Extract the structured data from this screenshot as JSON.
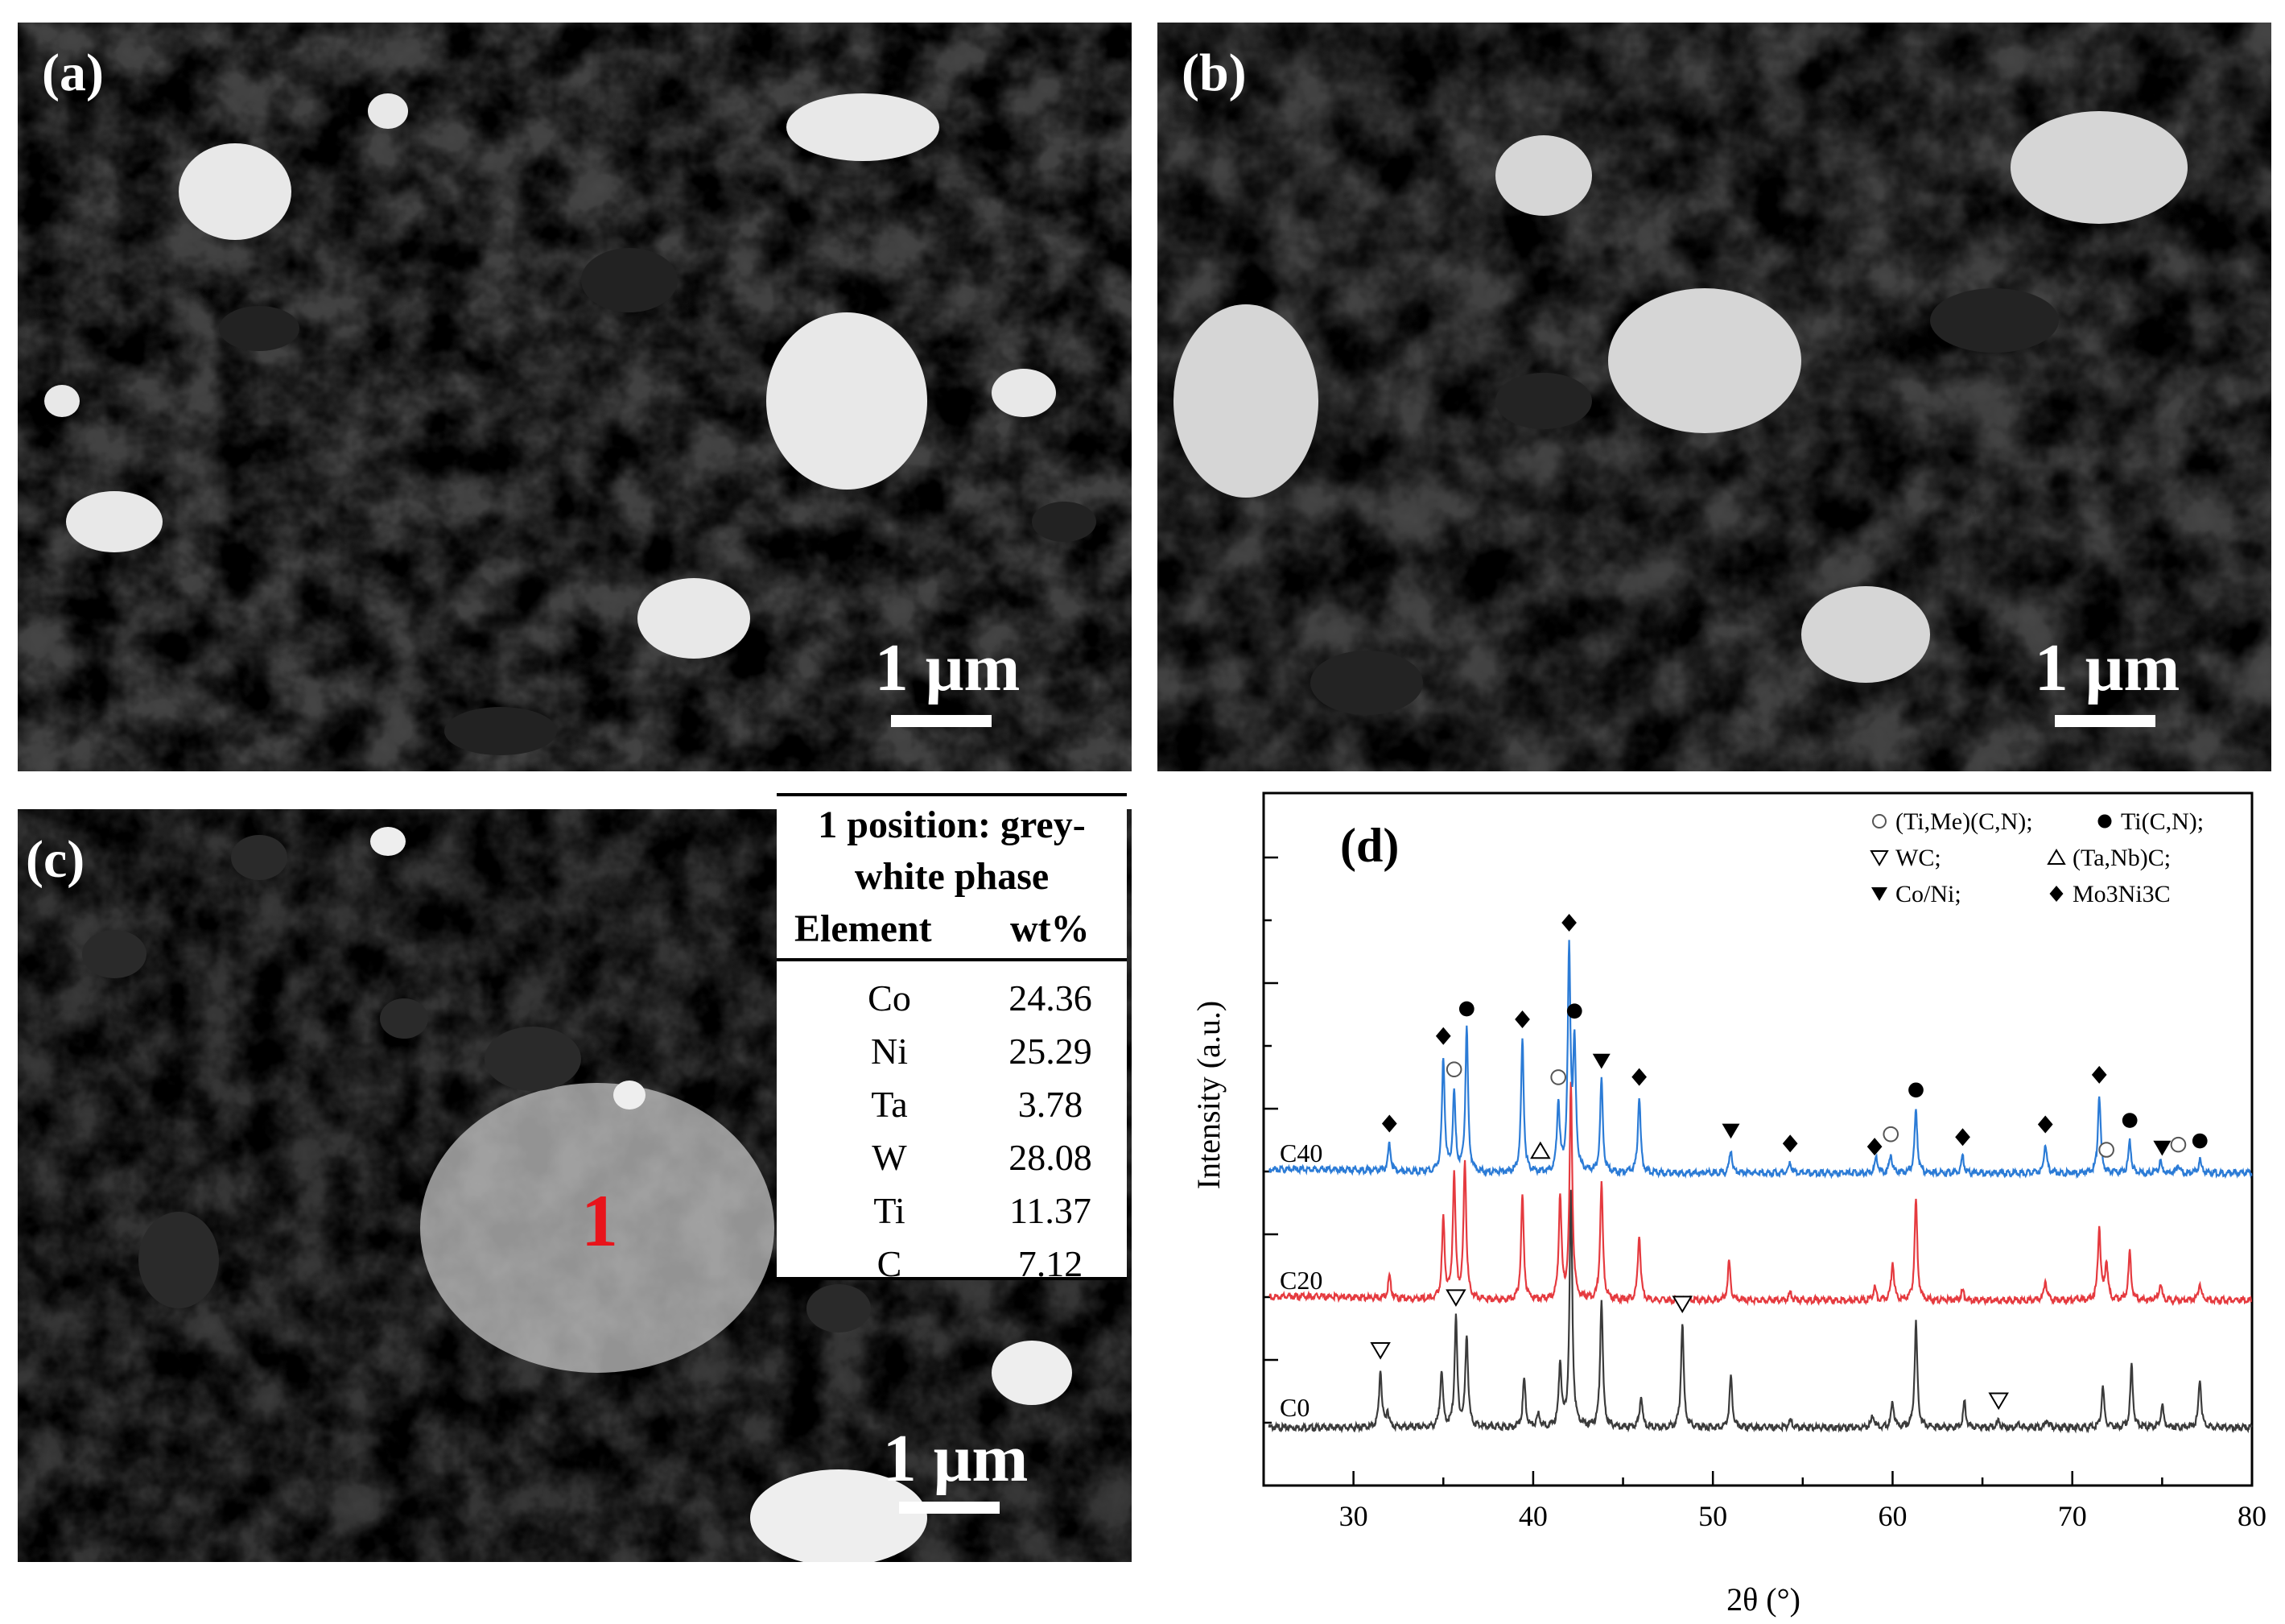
{
  "panels": {
    "a": {
      "label": "(a)",
      "scale_label": "1 μm"
    },
    "b": {
      "label": "(b)",
      "scale_label": "1 μm"
    },
    "c": {
      "label": "(c)",
      "scale_label": "1 μm",
      "marker": "1"
    }
  },
  "eds_table": {
    "caption_line1": "1 position: grey-",
    "caption_line2": "white phase",
    "headers": [
      "Element",
      "wt%"
    ],
    "rows": [
      {
        "element": "Co",
        "wt": "24.36"
      },
      {
        "element": "Ni",
        "wt": "25.29"
      },
      {
        "element": "Ta",
        "wt": "3.78"
      },
      {
        "element": "W",
        "wt": "28.08"
      },
      {
        "element": "Ti",
        "wt": "11.37"
      },
      {
        "element": "C",
        "wt": "7.12"
      }
    ]
  },
  "chart_data": {
    "type": "line",
    "panel_label": "(d)",
    "xlabel": "2θ (°)",
    "ylabel": "Intensity (a.u.)",
    "xlim": [
      25,
      80
    ],
    "xticks": [
      30,
      40,
      50,
      60,
      70,
      80
    ],
    "legend": {
      "placement": "top-right",
      "lines": [
        [
          {
            "symbol": "circle-open",
            "text": "(Ti,Me)(C,N);"
          },
          {
            "symbol": "circle-filled",
            "text": "Ti(C,N);"
          }
        ],
        [
          {
            "symbol": "triangle-down-open",
            "text": "WC;"
          },
          {
            "symbol": "triangle-up-open",
            "text": "(Ta,Nb)C;"
          }
        ],
        [
          {
            "symbol": "triangle-down-filled",
            "text": "Co/Ni;"
          },
          {
            "symbol": "diamond-filled",
            "text": "Mo3Ni3C"
          }
        ]
      ]
    },
    "series": [
      {
        "name": "C0",
        "color": "#3b3b3b",
        "baseline": 0.0,
        "peaks": [
          [
            31.5,
            0.45
          ],
          [
            31.9,
            0.12
          ],
          [
            34.9,
            0.45
          ],
          [
            35.7,
            0.85
          ],
          [
            36.3,
            0.72
          ],
          [
            39.5,
            0.38
          ],
          [
            40.3,
            0.1
          ],
          [
            41.5,
            0.5
          ],
          [
            42.1,
            1.85
          ],
          [
            43.8,
            1.0
          ],
          [
            46.0,
            0.25
          ],
          [
            48.3,
            0.82
          ],
          [
            51.0,
            0.4
          ],
          [
            54.3,
            0.06
          ],
          [
            58.9,
            0.1
          ],
          [
            60.0,
            0.2
          ],
          [
            61.3,
            0.82
          ],
          [
            64.0,
            0.2
          ],
          [
            65.9,
            0.06
          ],
          [
            67.0,
            0.03
          ],
          [
            68.6,
            0.06
          ],
          [
            71.7,
            0.32
          ],
          [
            73.3,
            0.48
          ],
          [
            75.0,
            0.18
          ],
          [
            77.1,
            0.38
          ]
        ]
      },
      {
        "name": "C20",
        "color": "#e53a3f",
        "baseline": 1.0,
        "peaks": [
          [
            32.0,
            0.18
          ],
          [
            35.0,
            0.62
          ],
          [
            35.6,
            0.98
          ],
          [
            36.2,
            1.08
          ],
          [
            39.4,
            0.82
          ],
          [
            41.5,
            0.82
          ],
          [
            42.1,
            1.68
          ],
          [
            43.8,
            0.92
          ],
          [
            45.9,
            0.52
          ],
          [
            50.9,
            0.3
          ],
          [
            54.3,
            0.06
          ],
          [
            59.0,
            0.1
          ],
          [
            60.0,
            0.3
          ],
          [
            61.3,
            0.78
          ],
          [
            63.9,
            0.08
          ],
          [
            68.5,
            0.16
          ],
          [
            71.5,
            0.58
          ],
          [
            71.9,
            0.3
          ],
          [
            73.2,
            0.38
          ],
          [
            74.9,
            0.13
          ],
          [
            77.1,
            0.13
          ]
        ]
      },
      {
        "name": "C40",
        "color": "#2b7bd6",
        "baseline": 2.0,
        "peaks": [
          [
            32.0,
            0.22
          ],
          [
            35.0,
            0.9
          ],
          [
            35.6,
            0.62
          ],
          [
            36.3,
            1.12
          ],
          [
            39.4,
            1.05
          ],
          [
            41.4,
            0.55
          ],
          [
            42.0,
            1.72
          ],
          [
            42.3,
            0.97
          ],
          [
            43.8,
            0.72
          ],
          [
            45.9,
            0.6
          ],
          [
            51.0,
            0.18
          ],
          [
            54.3,
            0.08
          ],
          [
            59.1,
            0.12
          ],
          [
            59.9,
            0.15
          ],
          [
            61.3,
            0.5
          ],
          [
            63.9,
            0.13
          ],
          [
            68.5,
            0.23
          ],
          [
            71.5,
            0.62
          ],
          [
            73.2,
            0.26
          ],
          [
            74.9,
            0.1
          ],
          [
            75.9,
            0.07
          ],
          [
            77.1,
            0.1
          ]
        ]
      }
    ],
    "markers": [
      {
        "symbol": "triangle-down-open",
        "x": 31.5,
        "series": "C0"
      },
      {
        "symbol": "triangle-down-open",
        "x": 35.7,
        "series": "C0"
      },
      {
        "symbol": "triangle-down-open",
        "x": 48.3,
        "series": "C0"
      },
      {
        "symbol": "triangle-down-open",
        "x": 65.9,
        "series": "C0"
      },
      {
        "symbol": "diamond-filled",
        "x": 32.0,
        "series": "C40"
      },
      {
        "symbol": "diamond-filled",
        "x": 35.0,
        "series": "C40"
      },
      {
        "symbol": "circle-open",
        "x": 35.6,
        "series": "C40"
      },
      {
        "symbol": "circle-filled",
        "x": 36.3,
        "series": "C40"
      },
      {
        "symbol": "diamond-filled",
        "x": 39.4,
        "series": "C40"
      },
      {
        "symbol": "triangle-up-open",
        "x": 40.4,
        "series": "C40"
      },
      {
        "symbol": "circle-open",
        "x": 41.4,
        "series": "C40"
      },
      {
        "symbol": "diamond-filled",
        "x": 42.0,
        "series": "C40"
      },
      {
        "symbol": "circle-filled",
        "x": 42.3,
        "series": "C40"
      },
      {
        "symbol": "triangle-down-filled",
        "x": 43.8,
        "series": "C40"
      },
      {
        "symbol": "diamond-filled",
        "x": 45.9,
        "series": "C40"
      },
      {
        "symbol": "triangle-down-filled",
        "x": 51.0,
        "series": "C40"
      },
      {
        "symbol": "diamond-filled",
        "x": 54.3,
        "series": "C40"
      },
      {
        "symbol": "diamond-filled",
        "x": 59.0,
        "series": "C40"
      },
      {
        "symbol": "circle-open",
        "x": 59.9,
        "series": "C40"
      },
      {
        "symbol": "circle-filled",
        "x": 61.3,
        "series": "C40"
      },
      {
        "symbol": "diamond-filled",
        "x": 63.9,
        "series": "C40"
      },
      {
        "symbol": "diamond-filled",
        "x": 68.5,
        "series": "C40"
      },
      {
        "symbol": "diamond-filled",
        "x": 71.5,
        "series": "C40"
      },
      {
        "symbol": "circle-open",
        "x": 71.9,
        "series": "C40"
      },
      {
        "symbol": "circle-filled",
        "x": 73.2,
        "series": "C40"
      },
      {
        "symbol": "triangle-down-filled",
        "x": 75.0,
        "series": "C40"
      },
      {
        "symbol": "circle-open",
        "x": 75.9,
        "series": "C40"
      },
      {
        "symbol": "circle-filled",
        "x": 77.1,
        "series": "C40"
      }
    ]
  }
}
